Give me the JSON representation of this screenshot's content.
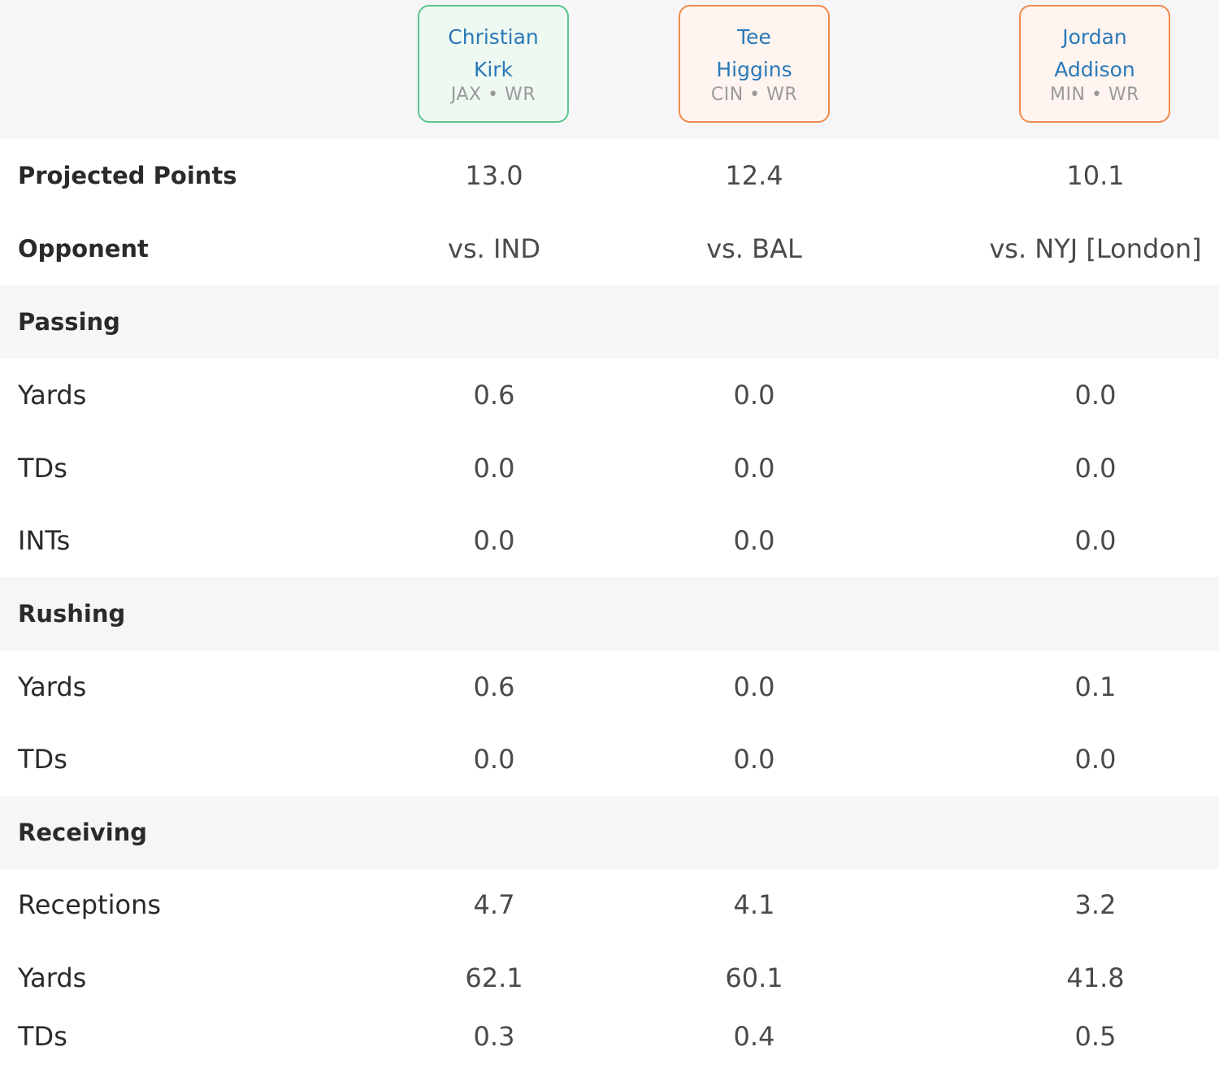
{
  "players": [
    {
      "name": "Christian\nKirk",
      "meta": "JAX • WR"
    },
    {
      "name": "Tee\nHiggins",
      "meta": "CIN • WR"
    },
    {
      "name": "Jordan\nAddison",
      "meta": "MIN • WR"
    }
  ],
  "summary": {
    "projected": {
      "label": "Projected Points",
      "values": [
        "13.0",
        "12.4",
        "10.1"
      ]
    },
    "opponent": {
      "label": "Opponent",
      "values": [
        "vs. IND",
        "vs. BAL",
        "vs. NYJ [London]"
      ]
    }
  },
  "passing": {
    "title": "Passing",
    "yards": {
      "label": "Yards",
      "values": [
        "0.6",
        "0.0",
        "0.0"
      ]
    },
    "tds": {
      "label": "TDs",
      "values": [
        "0.0",
        "0.0",
        "0.0"
      ]
    },
    "ints": {
      "label": "INTs",
      "values": [
        "0.0",
        "0.0",
        "0.0"
      ]
    }
  },
  "rushing": {
    "title": "Rushing",
    "yards": {
      "label": "Yards",
      "values": [
        "0.6",
        "0.0",
        "0.1"
      ]
    },
    "tds": {
      "label": "TDs",
      "values": [
        "0.0",
        "0.0",
        "0.0"
      ]
    }
  },
  "receiving": {
    "title": "Receiving",
    "receptions": {
      "label": "Receptions",
      "values": [
        "4.7",
        "4.1",
        "3.2"
      ]
    },
    "yards": {
      "label": "Yards",
      "values": [
        "62.1",
        "60.1",
        "41.8"
      ]
    },
    "tds": {
      "label": "TDs",
      "values": [
        "0.3",
        "0.4",
        "0.5"
      ]
    }
  },
  "colors": {
    "accent_green": "#5cc48c",
    "accent_orange": "#f08a4b",
    "player_name": "#2a79b9"
  }
}
